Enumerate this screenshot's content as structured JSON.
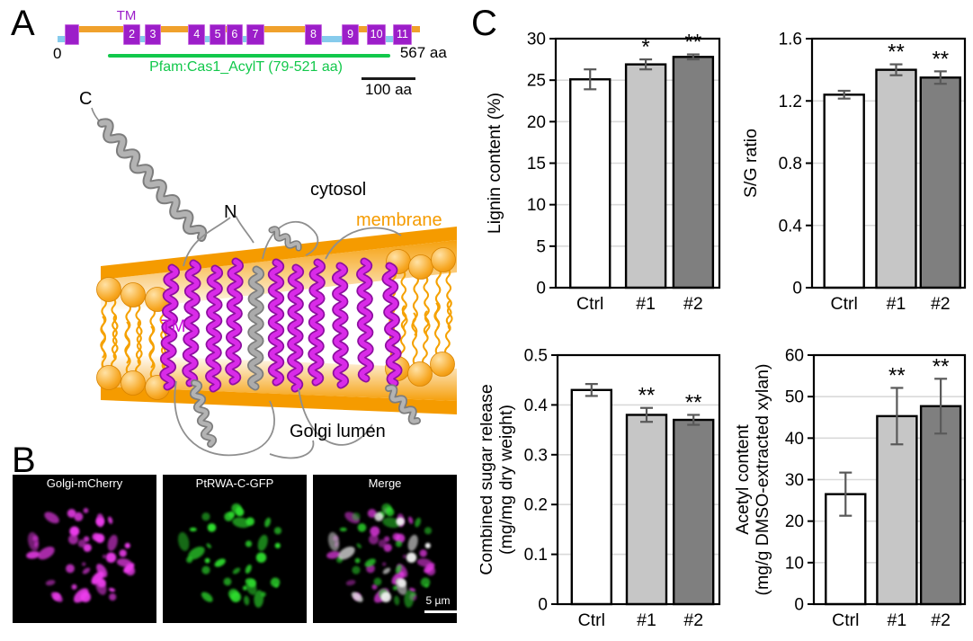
{
  "figure": {
    "panel_labels": {
      "a": "A",
      "b": "B",
      "c": "C"
    }
  },
  "domain_map": {
    "tm_label": "TM",
    "start_label": "0",
    "end_label": "567 aa",
    "pfam_label": "Pfam:Cas1_AcylT (79-521 aa)",
    "scale_label": "100 aa",
    "protein_length_aa": 567,
    "colors": {
      "tm_box": "#9C1EC9",
      "cytosol_loop": "#F0A12C",
      "lumen_loop": "#86CBEC",
      "pfam": "#12C84B"
    },
    "tm_boxes": [
      {
        "label": "",
        "x0": 2.0,
        "x1": 5.5
      },
      {
        "label": "2",
        "x0": 18.2,
        "x1": 22.3
      },
      {
        "label": "3",
        "x0": 24.0,
        "x1": 28.1
      },
      {
        "label": "4",
        "x0": 36.1,
        "x1": 40.2
      },
      {
        "label": "5",
        "x0": 41.9,
        "x1": 46.0
      },
      {
        "label": "6",
        "x0": 46.6,
        "x1": 50.6
      },
      {
        "label": "7",
        "x0": 52.2,
        "x1": 56.5
      },
      {
        "label": "8",
        "x0": 68.3,
        "x1": 72.4
      },
      {
        "label": "9",
        "x0": 78.5,
        "x1": 82.6
      },
      {
        "label": "10",
        "x0": 85.4,
        "x1": 90.1
      },
      {
        "label": "11",
        "x0": 92.6,
        "x1": 97.2
      }
    ],
    "cytosol_segments": [
      [
        5.5,
        18.2
      ],
      [
        28.1,
        36.1
      ],
      [
        45.6,
        47.0
      ],
      [
        56.5,
        68.3
      ],
      [
        82.6,
        85.4
      ],
      [
        97.2,
        100
      ]
    ],
    "lumen_segments": [
      [
        0,
        2.0
      ],
      [
        22.3,
        24.0
      ],
      [
        40.2,
        41.9
      ],
      [
        50.6,
        52.4
      ],
      [
        72.4,
        78.5
      ],
      [
        90.1,
        92.6
      ]
    ],
    "pfam_span": [
      13.9,
      91.9
    ]
  },
  "structure": {
    "labels": {
      "c_terminus": "C",
      "n_terminus": "N",
      "cytosol": "cytosol",
      "membrane": "membrane",
      "tm": "TM",
      "golgi_lumen": "Golgi lumen"
    },
    "colors": {
      "membrane": "#F59B00",
      "tm_helix": "#C50DD8",
      "ribbon": "#9E9E9E"
    }
  },
  "microscopy": {
    "panels": [
      {
        "title": "Golgi-mCherry",
        "channel": "magenta"
      },
      {
        "title": "PtRWA-C-GFP",
        "channel": "green"
      },
      {
        "title": "Merge",
        "channel": "merge"
      }
    ],
    "scale_bar_label": "5 µm",
    "colors": {
      "magenta": "#EE3CEE",
      "green": "#2EDD2E",
      "coloc": "#F4F4F4"
    }
  },
  "chart_data": [
    {
      "type": "bar",
      "ylabel_lines": [
        "Lignin content (%)"
      ],
      "categories": [
        "Ctrl",
        "#1",
        "#2"
      ],
      "values": [
        25.1,
        26.9,
        27.8
      ],
      "errors": [
        1.2,
        0.6,
        0.3
      ],
      "significance": [
        "",
        "*",
        "**"
      ],
      "ylim": [
        0,
        30
      ],
      "ytick_values": [
        0,
        5,
        10,
        15,
        20,
        25,
        30
      ],
      "ytick_labels": [
        "0",
        "5",
        "10",
        "15",
        "20",
        "25",
        "30"
      ],
      "bar_colors": [
        "#FFFFFF",
        "#C6C6C6",
        "#7F7F7F"
      ],
      "grid": true
    },
    {
      "type": "bar",
      "ylabel_lines": [
        "S/G ratio"
      ],
      "categories": [
        "Ctrl",
        "#1",
        "#2"
      ],
      "values": [
        1.24,
        1.4,
        1.35
      ],
      "errors": [
        0.025,
        0.035,
        0.04
      ],
      "significance": [
        "",
        "**",
        "**"
      ],
      "ylim": [
        0,
        1.6
      ],
      "ytick_values": [
        0,
        0.4,
        0.8,
        1.2,
        1.6
      ],
      "ytick_labels": [
        "0",
        "0.4",
        "0.8",
        "1.2",
        "1.6"
      ],
      "bar_colors": [
        "#FFFFFF",
        "#C6C6C6",
        "#7F7F7F"
      ],
      "grid": true
    },
    {
      "type": "bar",
      "ylabel_lines": [
        "Combined sugar release",
        "(mg/mg dry weight)"
      ],
      "categories": [
        "Ctrl",
        "#1",
        "#2"
      ],
      "values": [
        0.43,
        0.38,
        0.37
      ],
      "errors": [
        0.012,
        0.014,
        0.01
      ],
      "significance": [
        "",
        "**",
        "**"
      ],
      "ylim": [
        0,
        0.5
      ],
      "ytick_values": [
        0,
        0.1,
        0.2,
        0.3,
        0.4,
        0.5
      ],
      "ytick_labels": [
        "0",
        "0.1",
        "0.2",
        "0.3",
        "0.4",
        "0.5"
      ],
      "bar_colors": [
        "#FFFFFF",
        "#C6C6C6",
        "#7F7F7F"
      ],
      "grid": true
    },
    {
      "type": "bar",
      "ylabel_lines": [
        "Acetyl content",
        "(mg/g DMSO-extracted xylan)"
      ],
      "categories": [
        "Ctrl",
        "#1",
        "#2"
      ],
      "values": [
        26.5,
        45.3,
        47.7
      ],
      "errors": [
        5.2,
        6.8,
        6.6
      ],
      "significance": [
        "",
        "**",
        "**"
      ],
      "ylim": [
        0,
        60
      ],
      "ytick_values": [
        0,
        10,
        20,
        30,
        40,
        50,
        60
      ],
      "ytick_labels": [
        "0",
        "10",
        "20",
        "30",
        "40",
        "50",
        "60"
      ],
      "bar_colors": [
        "#FFFFFF",
        "#C6C6C6",
        "#7F7F7F"
      ],
      "grid": true
    }
  ]
}
